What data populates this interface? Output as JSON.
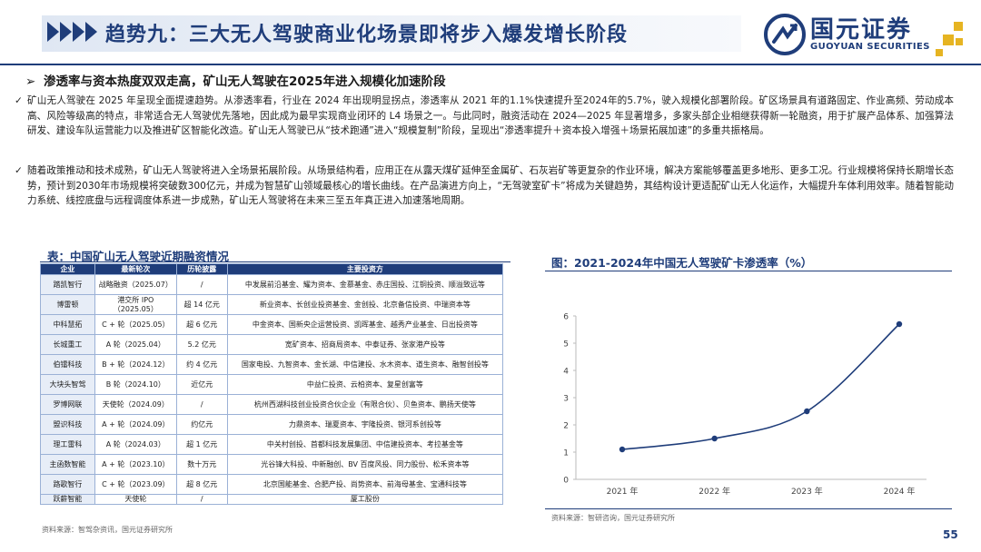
{
  "header": {
    "title": "趋势九：三大无人驾驶商业化场景即将步入爆发增长阶段",
    "logo_name": "国元证券",
    "logo_en": "GUOYUAN SECURITIES",
    "accent": "#1f3d7a",
    "logo_gold": "#e6b422"
  },
  "subheading": {
    "bullet": "➢",
    "text": "渗透率与资本热度双双走高，矿山无人驾驶在2025年进入规模化加速阶段"
  },
  "paragraphs": [
    {
      "mark": "✓",
      "text": "矿山无人驾驶在 2025 年呈现全面提速趋势。从渗透率看，行业在 2024 年出现明显拐点，渗透率从 2021 年的1.1%快速提升至2024年的5.7%，驶入规模化部署阶段。矿区场景具有道路固定、作业高频、劳动成本高、风险等级高的特点，非常适合无人驾驶优先落地，因此成为最早实现商业闭环的 L4 场景之一。与此同时，融资活动在 2024—2025 年显著增多，多家头部企业相继获得新一轮融资，用于扩展产品体系、加强算法研发、建设车队运营能力以及推进矿区智能化改造。矿山无人驾驶已从“技术跑通”进入“规模复制”阶段，呈现出“渗透率提升＋资本投入增强＋场景拓展加速”的多重共振格局。"
    },
    {
      "mark": "✓",
      "text": "随着政策推动和技术成熟，矿山无人驾驶将进入全场景拓展阶段。从场景结构看，应用正在从露天煤矿延伸至金属矿、石灰岩矿等更复杂的作业环境，解决方案能够覆盖更多地形、更多工况。行业规模将保持长期增长态势，预计到2030年市场规模将突破数300亿元，并成为智慧矿山领域最核心的增长曲线。在产品演进方向上，“无驾驶室矿卡”将成为关键趋势，其结构设计更适配矿山无人化运作，大幅提升车体利用效率。随着智能动力系统、线控底盘与远程调度体系进一步成熟，矿山无人驾驶将在未来三至五年真正进入加速落地周期。"
    }
  ],
  "table": {
    "title": "表：中国矿山无人驾驶近期融资情况",
    "headers": [
      "企业",
      "最新轮次",
      "历轮披露",
      "主要投资方"
    ],
    "rows": [
      [
        "踏凯智行",
        "战略融资（2025.07）",
        "/",
        "中发展前沿基金、耀为资本、金慕基金、赤庄国投、江铜投资、顺溢致远等"
      ],
      [
        "博雷顿",
        "港交所 IPO（2025.05）",
        "超 14 亿元",
        "新业资本、长创业投资基金、金创投、北京备信投资、中瑞资本等"
      ],
      [
        "中科慧拓",
        "C + 轮（2025.05）",
        "超 6 亿元",
        "中金资本、国新央企运营投资、凯晖基金、越秀产业基金、日出投资等"
      ],
      [
        "长城重工",
        "A 轮（2025.04）",
        "5.2 亿元",
        "宽矿资本、招商局资本、中泰证券、张家港产投等"
      ],
      [
        "伯镭科技",
        "B + 轮（2024.12）",
        "约 4 亿元",
        "国家电投、九智资本、金长湖、中信建投、水木资本、道生资本、融智创投等"
      ],
      [
        "大块头智驾",
        "B 轮（2024.10）",
        "近亿元",
        "中益仁投资、云柏资本、复星创富等"
      ],
      [
        "罗博网联",
        "天使轮（2024.09）",
        "/",
        "杭州西湖科技创业投资合伙企业（有限合伙）、贝鱼资本、鹏扬天使等"
      ],
      [
        "盟识科技",
        "A + 轮（2024.09）",
        "约亿元",
        "力鼎资本、瑞夏资本、宇隆投资、银河系创投等"
      ],
      [
        "理工雷科",
        "A 轮（2024.03）",
        "超 1 亿元",
        "中关村创投、首都科技发展集团、中信建投资本、考拉基金等"
      ],
      [
        "主函数智能",
        "A + 轮（2023.10）",
        "数十万元",
        "光谷锋大科投、中新融创、BV 百度风投、同力股份、松禾资本等"
      ],
      [
        "路歌智行",
        "C + 轮（2023.09）",
        "超 8 亿元",
        "北京国能基金、合肥产投、尚势资本、前海母基金、宝通科技等"
      ],
      [
        "跃薪智能",
        "天使轮",
        "/",
        "厦工股份"
      ]
    ],
    "source": "资料来源：智驾杂资讯，国元证券研究所"
  },
  "chart": {
    "title": "图：2021-2024年中国无人驾驶矿卡渗透率（%）",
    "source": "资料来源：智研咨询，国元证券研究所"
  },
  "chart_data": {
    "type": "line",
    "title": "图：2021-2024年中国无人驾驶矿卡渗透率（%）",
    "categories": [
      "2021 年",
      "2022 年",
      "2023 年",
      "2024 年"
    ],
    "values": [
      1.1,
      1.5,
      2.5,
      5.7
    ],
    "ylim": [
      0,
      6
    ],
    "yticks": [
      "0",
      "1",
      "2",
      "3",
      "4",
      "5",
      "6"
    ],
    "grid": false,
    "line_color": "#1f3d7a"
  },
  "footer": {
    "page": "55"
  }
}
